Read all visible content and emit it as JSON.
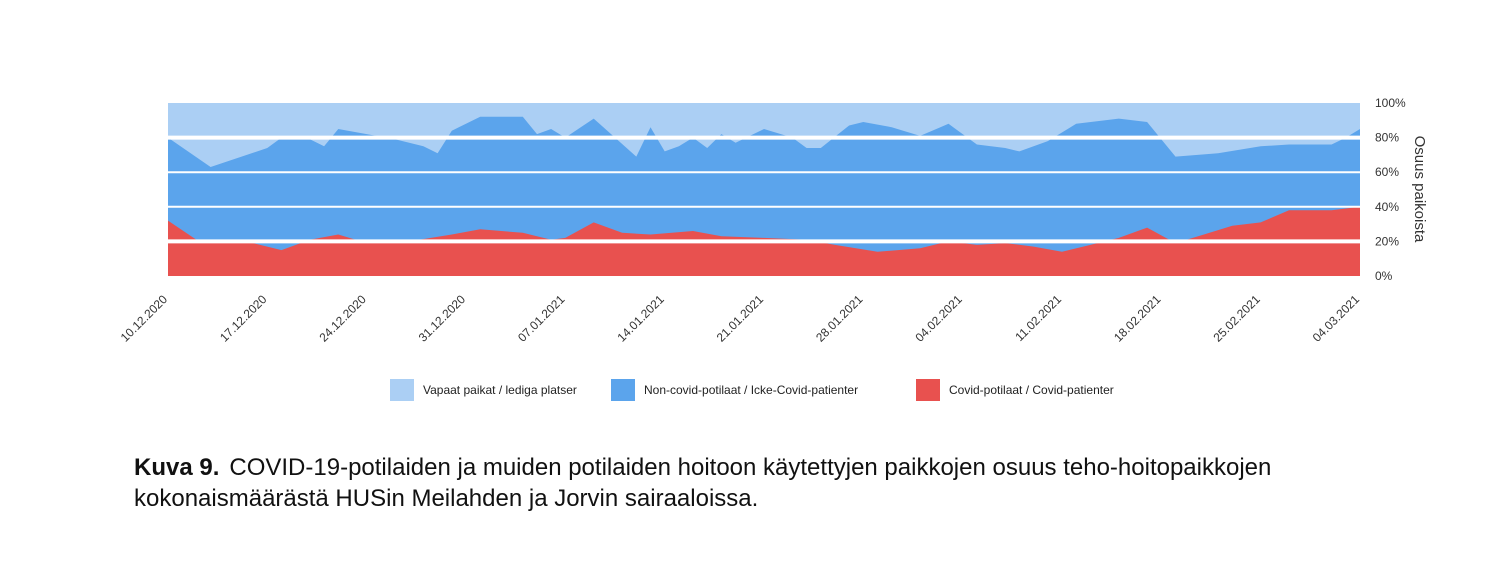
{
  "figure": {
    "caption_label": "Kuva 9.",
    "caption_text": "COVID-19-potilaiden ja muiden potilaiden hoitoon käytettyjen paikkojen osuus teho-hoitopaikkojen kokonaismäärästä HUSin Meilahden ja Jorvin sairaaloissa."
  },
  "chart_data": {
    "type": "area",
    "stacked": true,
    "x_start": "10.12.2020",
    "x_end": "04.03.2021",
    "x_tick_labels": [
      "10.12.2020",
      "17.12.2020",
      "24.12.2020",
      "31.12.2020",
      "07.01.2021",
      "14.01.2021",
      "21.01.2021",
      "28.01.2021",
      "04.02.2021",
      "11.02.2021",
      "18.02.2021",
      "25.02.2021",
      "04.03.2021"
    ],
    "y_label": "Osuus paikoista",
    "y_axis_side": "right",
    "y_ticks": [
      "0%",
      "20%",
      "40%",
      "60%",
      "80%",
      "100%"
    ],
    "ylim": [
      0,
      100
    ],
    "grid": true,
    "legend_position": "bottom",
    "colors": {
      "covid": "#e8514f",
      "noncovid": "#5ba4ec",
      "free": "#abcff4",
      "grid": "#ffffff",
      "text": "#333333"
    },
    "series": [
      {
        "name": "Vapaat paikat / lediga platser",
        "key": "free",
        "role": "remainder to 100%"
      },
      {
        "name": "Non-covid-potilaat / Icke-Covid-patienter",
        "key": "noncovid",
        "cumulative_top": [
          {
            "x": "2020-12-10",
            "y": 80
          },
          {
            "x": "2020-12-13",
            "y": 63
          },
          {
            "x": "2020-12-17",
            "y": 74
          },
          {
            "x": "2020-12-18",
            "y": 80
          },
          {
            "x": "2020-12-20",
            "y": 79
          },
          {
            "x": "2020-12-21",
            "y": 75
          },
          {
            "x": "2020-12-22",
            "y": 85
          },
          {
            "x": "2020-12-24",
            "y": 82
          },
          {
            "x": "2020-12-26",
            "y": 79
          },
          {
            "x": "2020-12-28",
            "y": 75
          },
          {
            "x": "2020-12-29",
            "y": 71
          },
          {
            "x": "2020-12-30",
            "y": 84
          },
          {
            "x": "2021-01-01",
            "y": 92
          },
          {
            "x": "2021-01-04",
            "y": 92
          },
          {
            "x": "2021-01-05",
            "y": 82
          },
          {
            "x": "2021-01-06",
            "y": 85
          },
          {
            "x": "2021-01-07",
            "y": 80
          },
          {
            "x": "2021-01-09",
            "y": 91
          },
          {
            "x": "2021-01-12",
            "y": 69
          },
          {
            "x": "2021-01-13",
            "y": 86
          },
          {
            "x": "2021-01-14",
            "y": 72
          },
          {
            "x": "2021-01-15",
            "y": 75
          },
          {
            "x": "2021-01-16",
            "y": 80
          },
          {
            "x": "2021-01-17",
            "y": 74
          },
          {
            "x": "2021-01-18",
            "y": 82
          },
          {
            "x": "2021-01-19",
            "y": 77
          },
          {
            "x": "2021-01-21",
            "y": 85
          },
          {
            "x": "2021-01-23",
            "y": 80
          },
          {
            "x": "2021-01-24",
            "y": 74
          },
          {
            "x": "2021-01-25",
            "y": 74
          },
          {
            "x": "2021-01-27",
            "y": 87
          },
          {
            "x": "2021-01-28",
            "y": 89
          },
          {
            "x": "2021-01-30",
            "y": 86
          },
          {
            "x": "2021-02-01",
            "y": 81
          },
          {
            "x": "2021-02-03",
            "y": 88
          },
          {
            "x": "2021-02-05",
            "y": 76
          },
          {
            "x": "2021-02-07",
            "y": 74
          },
          {
            "x": "2021-02-08",
            "y": 72
          },
          {
            "x": "2021-02-10",
            "y": 78
          },
          {
            "x": "2021-02-12",
            "y": 88
          },
          {
            "x": "2021-02-15",
            "y": 91
          },
          {
            "x": "2021-02-17",
            "y": 89
          },
          {
            "x": "2021-02-19",
            "y": 69
          },
          {
            "x": "2021-02-22",
            "y": 71
          },
          {
            "x": "2021-02-25",
            "y": 75
          },
          {
            "x": "2021-02-27",
            "y": 76
          },
          {
            "x": "2021-03-02",
            "y": 76
          },
          {
            "x": "2021-03-03",
            "y": 80
          },
          {
            "x": "2021-03-04",
            "y": 85
          }
        ]
      },
      {
        "name": "Covid-potilaat / Covid-patienter",
        "key": "covid",
        "values": [
          {
            "x": "2020-12-10",
            "y": 32
          },
          {
            "x": "2020-12-12",
            "y": 21
          },
          {
            "x": "2020-12-14",
            "y": 20
          },
          {
            "x": "2020-12-16",
            "y": 19
          },
          {
            "x": "2020-12-18",
            "y": 15
          },
          {
            "x": "2020-12-20",
            "y": 21
          },
          {
            "x": "2020-12-22",
            "y": 24
          },
          {
            "x": "2020-12-24",
            "y": 19
          },
          {
            "x": "2020-12-27",
            "y": 20
          },
          {
            "x": "2020-12-30",
            "y": 24
          },
          {
            "x": "2021-01-01",
            "y": 27
          },
          {
            "x": "2021-01-04",
            "y": 25
          },
          {
            "x": "2021-01-06",
            "y": 21
          },
          {
            "x": "2021-01-07",
            "y": 22
          },
          {
            "x": "2021-01-09",
            "y": 31
          },
          {
            "x": "2021-01-11",
            "y": 25
          },
          {
            "x": "2021-01-13",
            "y": 24
          },
          {
            "x": "2021-01-16",
            "y": 26
          },
          {
            "x": "2021-01-18",
            "y": 23
          },
          {
            "x": "2021-01-21",
            "y": 22
          },
          {
            "x": "2021-01-24",
            "y": 21
          },
          {
            "x": "2021-01-26",
            "y": 18
          },
          {
            "x": "2021-01-29",
            "y": 14
          },
          {
            "x": "2021-02-01",
            "y": 16
          },
          {
            "x": "2021-02-03",
            "y": 20
          },
          {
            "x": "2021-02-05",
            "y": 18
          },
          {
            "x": "2021-02-07",
            "y": 19
          },
          {
            "x": "2021-02-09",
            "y": 17
          },
          {
            "x": "2021-02-11",
            "y": 14
          },
          {
            "x": "2021-02-13",
            "y": 18
          },
          {
            "x": "2021-02-15",
            "y": 22
          },
          {
            "x": "2021-02-17",
            "y": 28
          },
          {
            "x": "2021-02-19",
            "y": 19
          },
          {
            "x": "2021-02-21",
            "y": 24
          },
          {
            "x": "2021-02-23",
            "y": 29
          },
          {
            "x": "2021-02-25",
            "y": 31
          },
          {
            "x": "2021-02-27",
            "y": 38
          },
          {
            "x": "2021-03-02",
            "y": 38
          },
          {
            "x": "2021-03-04",
            "y": 40
          }
        ]
      }
    ]
  }
}
